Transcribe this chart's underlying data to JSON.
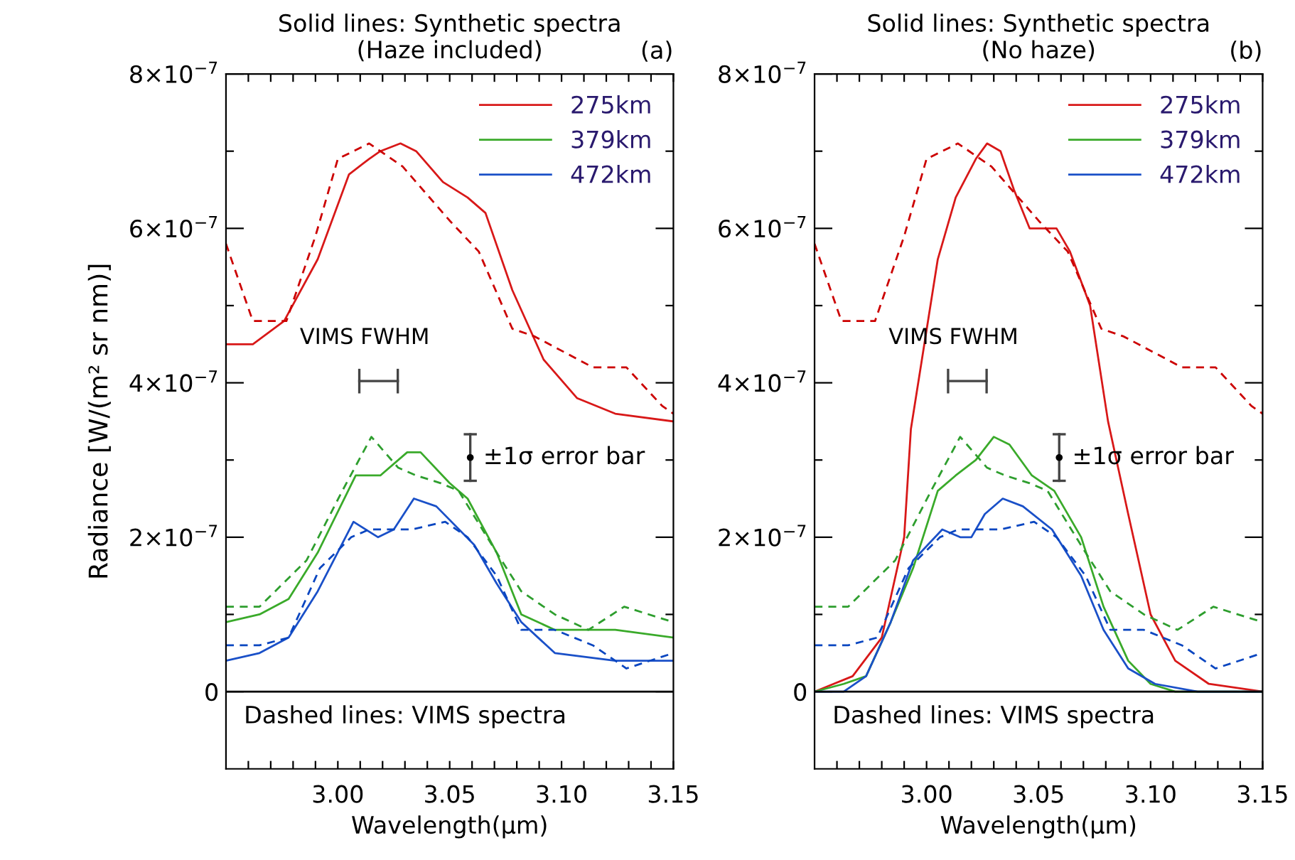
{
  "chart_data": [
    {
      "type": "line",
      "title": "Solid lines: Synthetic spectra\n(Haze included)",
      "xlabel": "Wavelength(μm)",
      "ylabel": "Radiance [W/(m² sr nm)]",
      "xlim": [
        2.95,
        3.15
      ],
      "ylim": [
        -1e-07,
        8e-07
      ],
      "xticks": [
        {
          "value": 2.96,
          "label": null
        },
        {
          "value": 2.97,
          "label": null
        },
        {
          "value": 2.98,
          "label": null
        },
        {
          "value": 2.99,
          "label": null
        },
        {
          "value": 3.0,
          "label": "3.00"
        },
        {
          "value": 3.01,
          "label": null
        },
        {
          "value": 3.02,
          "label": null
        },
        {
          "value": 3.03,
          "label": null
        },
        {
          "value": 3.04,
          "label": null
        },
        {
          "value": 3.05,
          "label": "3.05"
        },
        {
          "value": 3.06,
          "label": null
        },
        {
          "value": 3.07,
          "label": null
        },
        {
          "value": 3.08,
          "label": null
        },
        {
          "value": 3.09,
          "label": null
        },
        {
          "value": 3.1,
          "label": "3.10"
        },
        {
          "value": 3.11,
          "label": null
        },
        {
          "value": 3.12,
          "label": null
        },
        {
          "value": 3.13,
          "label": null
        },
        {
          "value": 3.14,
          "label": null
        },
        {
          "value": 3.15,
          "label": "3.15"
        }
      ],
      "yticks": [
        {
          "value": 0,
          "label": "0"
        },
        {
          "value": 1e-07,
          "label": null
        },
        {
          "value": 2e-07,
          "label": "2×10$^{−7}$"
        },
        {
          "value": 3e-07,
          "label": null
        },
        {
          "value": 4e-07,
          "label": "4×10$^{−7}$"
        },
        {
          "value": 5e-07,
          "label": null
        },
        {
          "value": 6e-07,
          "label": "6×10$^{−7}$"
        },
        {
          "value": 7e-07,
          "label": null
        },
        {
          "value": 8e-07,
          "label": "8×10$^{−7}$"
        }
      ],
      "legend": "top right",
      "ref_lines": [
        {
          "axis": "y",
          "value": 0,
          "color": "#000000"
        }
      ],
      "annotations": [
        "(a)",
        "Dashed lines: VIMS spectra",
        "VIMS FWHM",
        "±1σ error bar"
      ],
      "series": [
        {
          "name": "275km",
          "color": "#d81818",
          "line_style": "solid",
          "x": [
            2.95,
            2.962,
            2.976,
            2.991,
            3.005,
            3.014,
            3.019,
            3.028,
            3.035,
            3.047,
            3.058,
            3.066,
            3.078,
            3.092,
            3.107,
            3.124,
            3.15
          ],
          "values": [
            4.5e-07,
            4.5e-07,
            4.8e-07,
            5.6e-07,
            6.7e-07,
            6.9e-07,
            7e-07,
            7.1e-07,
            7e-07,
            6.6e-07,
            6.4e-07,
            6.2e-07,
            5.2e-07,
            4.3e-07,
            3.8e-07,
            3.6e-07,
            3.5e-07
          ]
        },
        {
          "name": "379km",
          "color": "#3aaa2a",
          "line_style": "solid",
          "x": [
            2.95,
            2.965,
            2.978,
            2.991,
            3.008,
            3.019,
            3.031,
            3.037,
            3.05,
            3.058,
            3.071,
            3.082,
            3.097,
            3.124,
            3.15
          ],
          "values": [
            9e-08,
            1e-07,
            1.2e-07,
            1.8e-07,
            2.8e-07,
            2.8e-07,
            3.1e-07,
            3.1e-07,
            2.7e-07,
            2.5e-07,
            1.8e-07,
            1e-07,
            8e-08,
            8e-08,
            7e-08
          ]
        },
        {
          "name": "472km",
          "color": "#1a50c8",
          "line_style": "solid",
          "x": [
            2.95,
            2.965,
            2.978,
            2.991,
            3.007,
            3.018,
            3.025,
            3.034,
            3.044,
            3.061,
            3.071,
            3.082,
            3.097,
            3.124,
            3.15
          ],
          "values": [
            4e-08,
            5e-08,
            7e-08,
            1.3e-07,
            2.2e-07,
            2e-07,
            2.1e-07,
            2.5e-07,
            2.4e-07,
            1.9e-07,
            1.4e-07,
            9e-08,
            5e-08,
            4e-08,
            4e-08
          ]
        },
        {
          "color": "#cc0000",
          "line_style": "dashed",
          "x": [
            2.95,
            2.962,
            2.977,
            2.99,
            3.0,
            3.014,
            3.029,
            3.05,
            3.063,
            3.078,
            3.088,
            3.114,
            3.129,
            3.145,
            3.15
          ],
          "values": [
            5.8e-07,
            4.8e-07,
            4.8e-07,
            5.9e-07,
            6.9e-07,
            7.1e-07,
            6.8e-07,
            6.1e-07,
            5.7e-07,
            4.7e-07,
            4.6e-07,
            4.2e-07,
            4.2e-07,
            3.7e-07,
            3.6e-07
          ]
        },
        {
          "color": "#2e9e2e",
          "line_style": "dashed",
          "x": [
            2.95,
            2.965,
            2.986,
            3.002,
            3.015,
            3.027,
            3.035,
            3.046,
            3.054,
            3.071,
            3.082,
            3.097,
            3.112,
            3.128,
            3.15
          ],
          "values": [
            1.1e-07,
            1.1e-07,
            1.7e-07,
            2.6e-07,
            3.3e-07,
            2.9e-07,
            2.8e-07,
            2.7e-07,
            2.6e-07,
            1.8e-07,
            1.3e-07,
            1e-07,
            8e-08,
            1.1e-07,
            9e-08
          ]
        },
        {
          "color": "#0a46c0",
          "line_style": "dashed",
          "x": [
            2.95,
            2.965,
            2.978,
            2.992,
            3.006,
            3.014,
            3.033,
            3.048,
            3.058,
            3.071,
            3.082,
            3.097,
            3.114,
            3.129,
            3.15
          ],
          "values": [
            6e-08,
            6e-08,
            7e-08,
            1.6e-07,
            2e-07,
            2.1e-07,
            2.1e-07,
            2.2e-07,
            2e-07,
            1.5e-07,
            8e-08,
            8e-08,
            6e-08,
            3e-08,
            5e-08
          ]
        }
      ]
    },
    {
      "type": "line",
      "title": "Solid lines: Synthetic spectra\n(No haze)",
      "xlabel": "Wavelength(μm)",
      "xlim": [
        2.95,
        3.15
      ],
      "ylim": [
        -1e-07,
        8e-07
      ],
      "xticks": [
        {
          "value": 2.96,
          "label": null
        },
        {
          "value": 2.97,
          "label": null
        },
        {
          "value": 2.98,
          "label": null
        },
        {
          "value": 2.99,
          "label": null
        },
        {
          "value": 3.0,
          "label": "3.00"
        },
        {
          "value": 3.01,
          "label": null
        },
        {
          "value": 3.02,
          "label": null
        },
        {
          "value": 3.03,
          "label": null
        },
        {
          "value": 3.04,
          "label": null
        },
        {
          "value": 3.05,
          "label": "3.05"
        },
        {
          "value": 3.06,
          "label": null
        },
        {
          "value": 3.07,
          "label": null
        },
        {
          "value": 3.08,
          "label": null
        },
        {
          "value": 3.09,
          "label": null
        },
        {
          "value": 3.1,
          "label": "3.10"
        },
        {
          "value": 3.11,
          "label": null
        },
        {
          "value": 3.12,
          "label": null
        },
        {
          "value": 3.13,
          "label": null
        },
        {
          "value": 3.14,
          "label": null
        },
        {
          "value": 3.15,
          "label": "3.15"
        }
      ],
      "yticks": [
        {
          "value": 0,
          "label": "0"
        },
        {
          "value": 1e-07,
          "label": null
        },
        {
          "value": 2e-07,
          "label": "2×10$^{−7}$"
        },
        {
          "value": 3e-07,
          "label": null
        },
        {
          "value": 4e-07,
          "label": "4×10$^{−7}$"
        },
        {
          "value": 5e-07,
          "label": null
        },
        {
          "value": 6e-07,
          "label": "6×10$^{−7}$"
        },
        {
          "value": 7e-07,
          "label": null
        },
        {
          "value": 8e-07,
          "label": "8×10$^{−7}$"
        }
      ],
      "legend": "top right",
      "ref_lines": [
        {
          "axis": "y",
          "value": 0,
          "color": "#000000"
        }
      ],
      "annotations": [
        "(b)",
        "Dashed lines: VIMS spectra",
        "VIMS FWHM",
        "±1σ error bar"
      ],
      "series": [
        {
          "name": "275km",
          "color": "#d81818",
          "line_style": "solid",
          "x": [
            2.95,
            2.967,
            2.98,
            2.99,
            2.993,
            3.005,
            3.013,
            3.022,
            3.027,
            3.033,
            3.039,
            3.046,
            3.052,
            3.058,
            3.064,
            3.073,
            3.081,
            3.09,
            3.1,
            3.111,
            3.126,
            3.15
          ],
          "values": [
            0,
            2e-08,
            7e-08,
            2e-07,
            3.4e-07,
            5.6e-07,
            6.4e-07,
            6.9e-07,
            7.1e-07,
            7e-07,
            6.5e-07,
            6e-07,
            6e-07,
            6e-07,
            5.7e-07,
            5e-07,
            3.5e-07,
            2.3e-07,
            1e-07,
            4e-08,
            1e-08,
            0
          ]
        },
        {
          "name": "379km",
          "color": "#3aaa2a",
          "line_style": "solid",
          "x": [
            2.95,
            2.963,
            2.973,
            2.984,
            2.994,
            3.005,
            3.013,
            3.022,
            3.03,
            3.037,
            3.047,
            3.057,
            3.069,
            3.079,
            3.09,
            3.1,
            3.111,
            3.15
          ],
          "values": [
            0,
            1e-08,
            2e-08,
            9e-08,
            1.6e-07,
            2.6e-07,
            2.8e-07,
            3e-07,
            3.3e-07,
            3.2e-07,
            2.8e-07,
            2.6e-07,
            2e-07,
            1.1e-07,
            4e-08,
            1e-08,
            0,
            0
          ]
        },
        {
          "name": "472km",
          "color": "#1a50c8",
          "line_style": "solid",
          "x": [
            2.95,
            2.963,
            2.973,
            2.984,
            2.994,
            3.007,
            3.015,
            3.02,
            3.026,
            3.034,
            3.043,
            3.056,
            3.069,
            3.079,
            3.09,
            3.102,
            3.121,
            3.15
          ],
          "values": [
            0,
            0,
            2e-08,
            9e-08,
            1.7e-07,
            2.1e-07,
            2e-07,
            2e-07,
            2.3e-07,
            2.5e-07,
            2.4e-07,
            2.1e-07,
            1.5e-07,
            8e-08,
            3e-08,
            1e-08,
            0,
            0
          ]
        },
        {
          "color": "#cc0000",
          "line_style": "dashed",
          "x": [
            2.95,
            2.962,
            2.977,
            2.99,
            3.0,
            3.014,
            3.029,
            3.05,
            3.063,
            3.078,
            3.088,
            3.114,
            3.129,
            3.145,
            3.15
          ],
          "values": [
            5.8e-07,
            4.8e-07,
            4.8e-07,
            5.9e-07,
            6.9e-07,
            7.1e-07,
            6.8e-07,
            6.1e-07,
            5.7e-07,
            4.7e-07,
            4.6e-07,
            4.2e-07,
            4.2e-07,
            3.7e-07,
            3.6e-07
          ]
        },
        {
          "color": "#2e9e2e",
          "line_style": "dashed",
          "x": [
            2.95,
            2.965,
            2.986,
            3.002,
            3.015,
            3.027,
            3.035,
            3.046,
            3.054,
            3.071,
            3.082,
            3.097,
            3.112,
            3.128,
            3.15
          ],
          "values": [
            1.1e-07,
            1.1e-07,
            1.7e-07,
            2.6e-07,
            3.3e-07,
            2.9e-07,
            2.8e-07,
            2.7e-07,
            2.6e-07,
            1.8e-07,
            1.3e-07,
            1e-07,
            8e-08,
            1.1e-07,
            9e-08
          ]
        },
        {
          "color": "#0a46c0",
          "line_style": "dashed",
          "x": [
            2.95,
            2.965,
            2.978,
            2.992,
            3.006,
            3.014,
            3.033,
            3.048,
            3.058,
            3.071,
            3.082,
            3.097,
            3.114,
            3.129,
            3.15
          ],
          "values": [
            6e-08,
            6e-08,
            7e-08,
            1.6e-07,
            2e-07,
            2.1e-07,
            2.1e-07,
            2.2e-07,
            2e-07,
            1.5e-07,
            8e-08,
            8e-08,
            6e-08,
            3e-08,
            5e-08
          ]
        }
      ]
    }
  ]
}
